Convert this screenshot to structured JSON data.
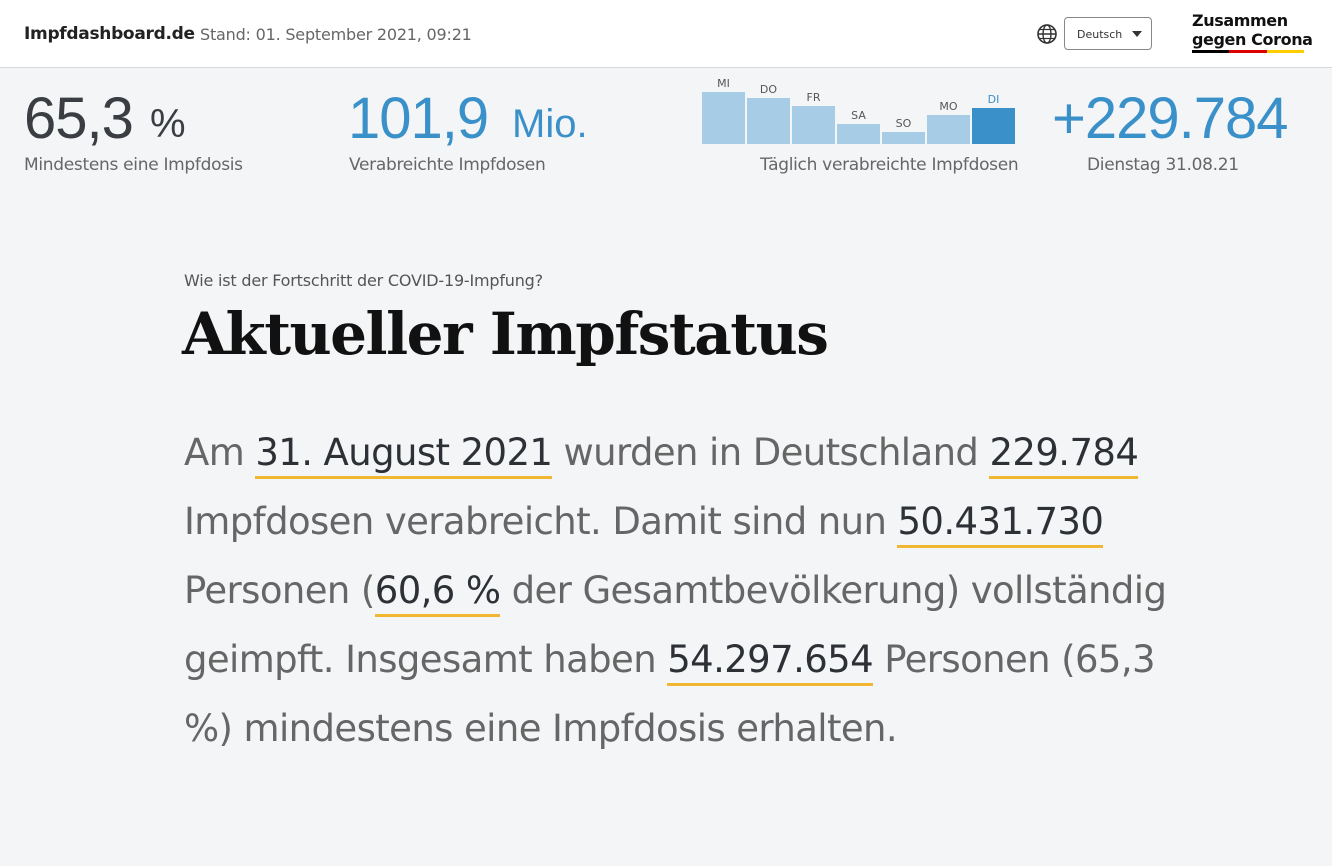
{
  "header": {
    "brand": "Impfdashboard.de",
    "stand": "Stand: 01. September 2021, 09:21",
    "language": "Deutsch",
    "campaign_line1": "Zusammen",
    "campaign_line2": "gegen Corona",
    "campaign_colors": [
      "#000000",
      "#dd0000",
      "#ffcc00"
    ]
  },
  "kpis": {
    "first_dose": {
      "value": "65,3",
      "unit": "%",
      "label": "Mindestens eine Impfdosis"
    },
    "total_doses": {
      "value": "101,9",
      "unit": "Mio.",
      "label": "Verabreichte Impfdosen"
    },
    "daily": {
      "label": "Täglich verabreichte Impfdosen"
    },
    "latest": {
      "value": "+229.784",
      "label": "Dienstag 31.08.21"
    }
  },
  "chart_data": {
    "type": "bar",
    "categories": [
      "MI",
      "DO",
      "FR",
      "SA",
      "SO",
      "MO",
      "DI"
    ],
    "values": [
      100,
      88,
      74,
      38,
      24,
      56,
      69
    ],
    "highlight_index": 6,
    "colors": {
      "bar": "#a7cde6",
      "active": "#3a90c8"
    }
  },
  "main": {
    "kicker": "Wie ist der Fortschritt der COVID-19-Impfung?",
    "title": "Aktueller Impfstatus",
    "p1": "Am ",
    "date": "31. August 2021",
    "p2": " wurden in Deutschland ",
    "daily_doses": "229.784",
    "p3": " Impfdosen verabreicht. Damit sind nun ",
    "fully_vaccinated": "50.431.730",
    "p4": " Personen (",
    "fully_pct": "60,6 %",
    "p5": " der Gesamtbevölkerung) vollständig geimpft. Insgesamt haben ",
    "at_least_one": "54.297.654",
    "p6": " Personen (65,3 %) mindestens eine Impfdosis erhalten.",
    "accent": "#f2b732"
  }
}
